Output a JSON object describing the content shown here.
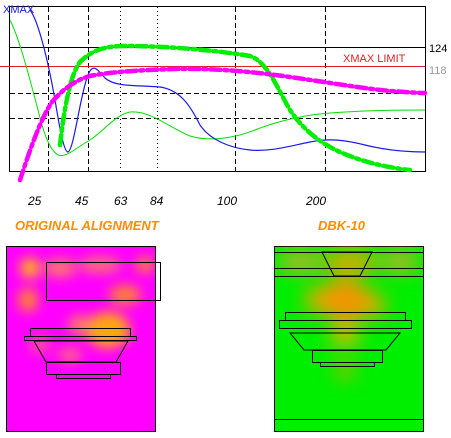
{
  "chart": {
    "label_xmax": "XMAX",
    "label_xmax_limit": "XMAX LIMIT",
    "label_124": "124",
    "label_118": "118",
    "x_ticks": [
      "25",
      "45",
      "63",
      "84",
      "100",
      "200"
    ]
  },
  "captions": {
    "left": "ORIGINAL ALIGNMENT",
    "right": "DBK-10"
  },
  "colors": {
    "magenta": "#ff00ff",
    "green": "#00ee00",
    "hot_orange": "#ffa000",
    "limit_red": "#dd2222",
    "curve_blue": "#1a1aee",
    "caption_orange": "#ff8c00"
  }
}
